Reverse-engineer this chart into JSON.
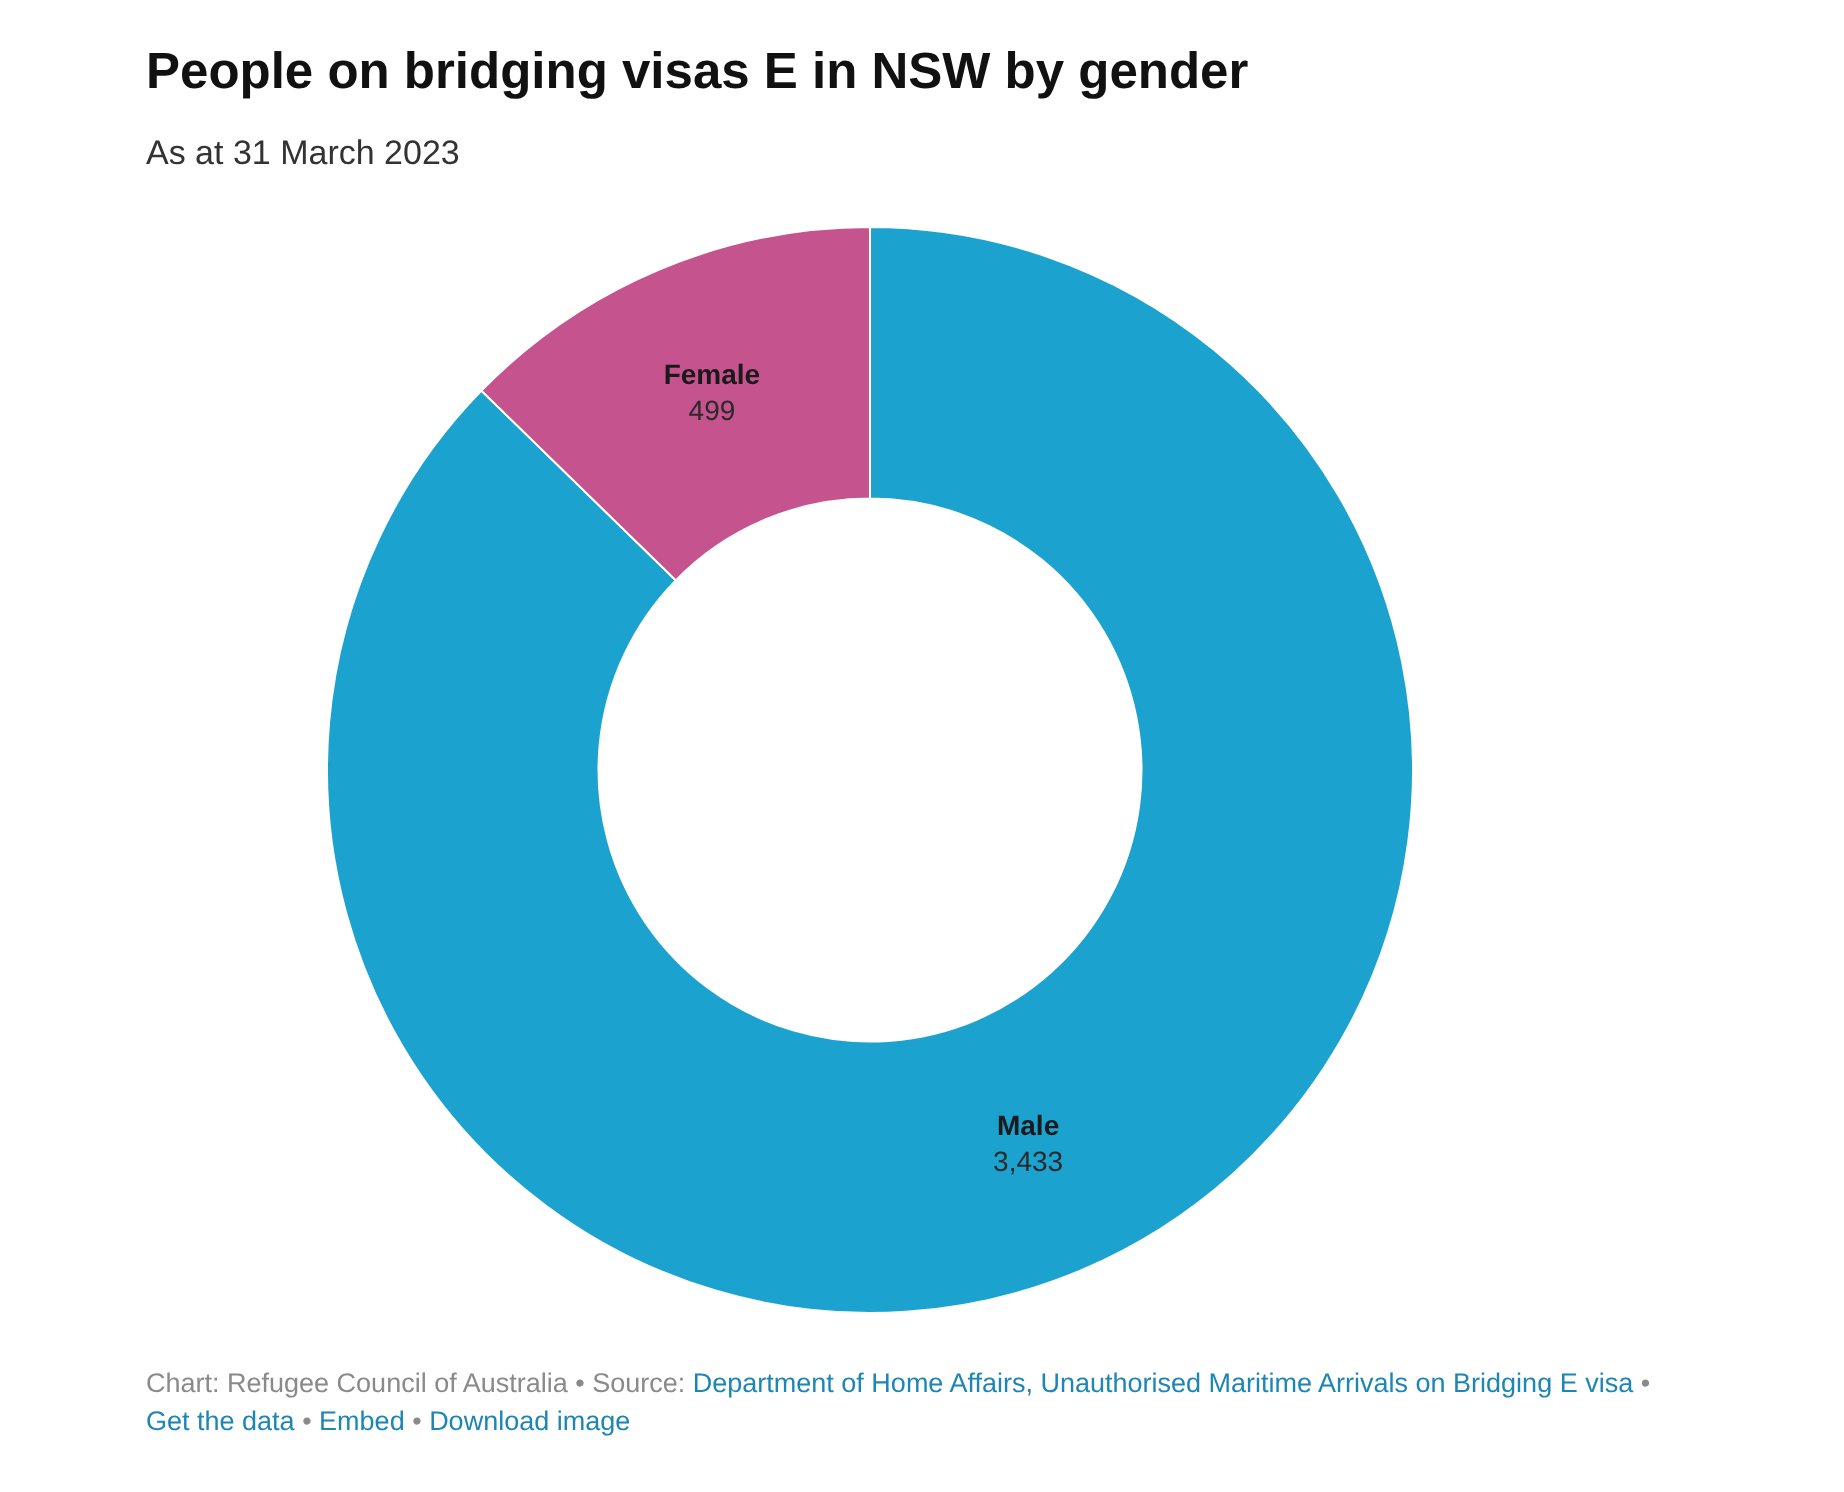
{
  "chart_data": {
    "type": "donut",
    "title": "People on bridging visas E in NSW by gender",
    "subtitle": "As at 31 March 2023",
    "categories": [
      "Male",
      "Female"
    ],
    "values": [
      3433,
      499
    ],
    "value_labels": [
      "3,433",
      "499"
    ],
    "colors": [
      "#1ba2ce",
      "#c5538d"
    ],
    "legend": false,
    "annotations": [
      "Chart: Refugee Council of Australia • Source: Department of Home Affairs, Unauthorised Maritime Arrivals on Bridging E visa • Get the data • Embed • Download image"
    ]
  }
}
